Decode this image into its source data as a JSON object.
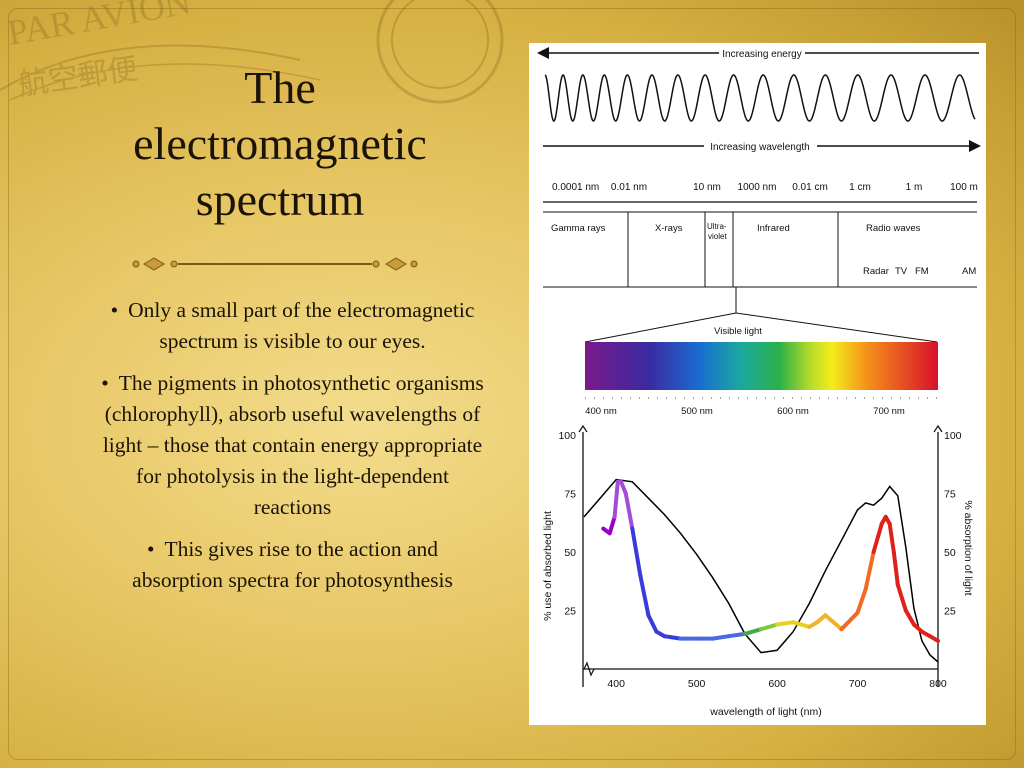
{
  "slide": {
    "title_lines": [
      "The",
      "electromagnetic",
      "spectrum"
    ],
    "bullets": [
      "Only a small part of the electromagnetic spectrum is visible to our eyes.",
      "The pigments in photosynthetic organisms (chlorophyll), absorb useful wavelengths of light – those that contain energy appropriate for photolysis in the light-dependent reactions",
      "This gives rise to the action and absorption spectra for photosynthesis"
    ],
    "stamp_text": [
      "PAR AVION",
      "航空郵便"
    ]
  },
  "spectrum": {
    "energy_label": "Increasing energy",
    "wavelength_label": "Increasing wavelength",
    "scale_labels": [
      "0.0001 nm",
      "0.01 nm",
      "10 nm",
      "1000 nm",
      "0.01 cm",
      "1 cm",
      "1 m",
      "100 m"
    ],
    "bands": [
      "Gamma rays",
      "X-rays",
      "Ultra-",
      "violet",
      "Infrared",
      "Radio waves"
    ],
    "radio_sub": [
      "Radar",
      "TV",
      "FM",
      "AM"
    ],
    "visible_label": "Visible light",
    "visible_ticks": [
      "400 nm",
      "500 nm",
      "600 nm",
      "700 nm"
    ]
  },
  "chart_data": {
    "type": "line",
    "xlabel": "wavelength of light (nm)",
    "ylabel_left": "% use of absorbed light",
    "ylabel_right": "% absorption of light",
    "x_ticks": [
      400,
      500,
      600,
      700,
      800
    ],
    "y_ticks": [
      25,
      50,
      75,
      100
    ],
    "xlim": [
      360,
      800
    ],
    "ylim": [
      0,
      100
    ],
    "series": [
      {
        "type": "action-spectrum",
        "color": "#000000",
        "x": [
          360,
          380,
          400,
          420,
          440,
          460,
          480,
          500,
          520,
          540,
          560,
          580,
          600,
          620,
          640,
          660,
          680,
          700,
          710,
          720,
          730,
          740,
          750,
          760,
          770,
          780,
          790,
          800
        ],
        "y": [
          65,
          73,
          81,
          80,
          73,
          66,
          58,
          49,
          39,
          28,
          15,
          7,
          8,
          16,
          28,
          42,
          55,
          68,
          71,
          70,
          73,
          78,
          74,
          52,
          26,
          12,
          6,
          3
        ]
      },
      {
        "type": "absorption-spectrum",
        "colors": [
          "#9a00c8",
          "#a24dd8",
          "#3b3bdc",
          "#4a6be0",
          "#46a84a",
          "#7ec93a",
          "#e6d21e",
          "#f0b428",
          "#f06a28",
          "#e0201a"
        ],
        "x": [
          384,
          392,
          398,
          402,
          406,
          412,
          420,
          430,
          440,
          450,
          460,
          480,
          500,
          520,
          540,
          560,
          580,
          600,
          620,
          640,
          650,
          660,
          670,
          680,
          700,
          710,
          720,
          730,
          735,
          740,
          745,
          750,
          760,
          770,
          780,
          790,
          800
        ],
        "y": [
          60,
          58,
          65,
          80,
          80,
          75,
          60,
          40,
          23,
          16,
          14,
          13,
          13,
          13,
          14,
          15,
          17,
          19,
          20,
          18,
          20,
          23,
          20,
          17,
          24,
          34,
          50,
          62,
          65,
          62,
          50,
          36,
          25,
          19,
          16,
          14,
          12
        ]
      }
    ]
  }
}
